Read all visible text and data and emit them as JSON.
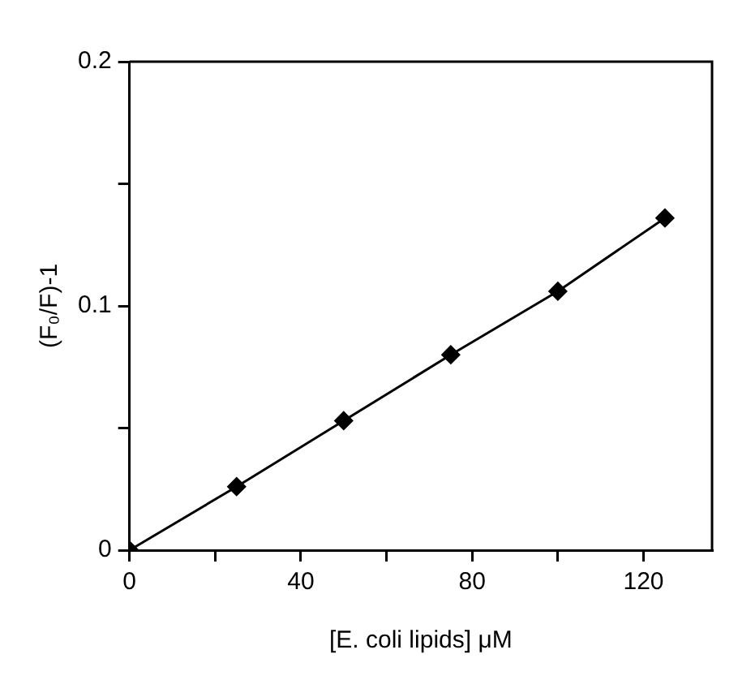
{
  "chart_data": {
    "type": "line",
    "xlabel": "[E. coli lipids] μM",
    "ylabel": "(F₀/F)-1",
    "x": [
      0,
      25,
      50,
      75,
      100,
      125
    ],
    "series": [
      {
        "color": "#000000",
        "values": [
          0,
          0.026,
          0.053,
          0.08,
          0.106,
          0.136
        ]
      }
    ],
    "xlim": [
      0,
      136
    ],
    "xticks": [
      0,
      {
        "value": 20,
        "label": null
      },
      40,
      {
        "value": 60,
        "label": null
      },
      80,
      {
        "value": 100,
        "label": null
      },
      120
    ],
    "ylim": [
      0,
      0.2
    ],
    "yticks": [
      0,
      {
        "value": 0.05,
        "label": null
      },
      0.1,
      {
        "value": 0.15,
        "label": null
      },
      0.2
    ],
    "marker": "diamond",
    "line_style": "solid",
    "grid": false,
    "legend": false
  }
}
